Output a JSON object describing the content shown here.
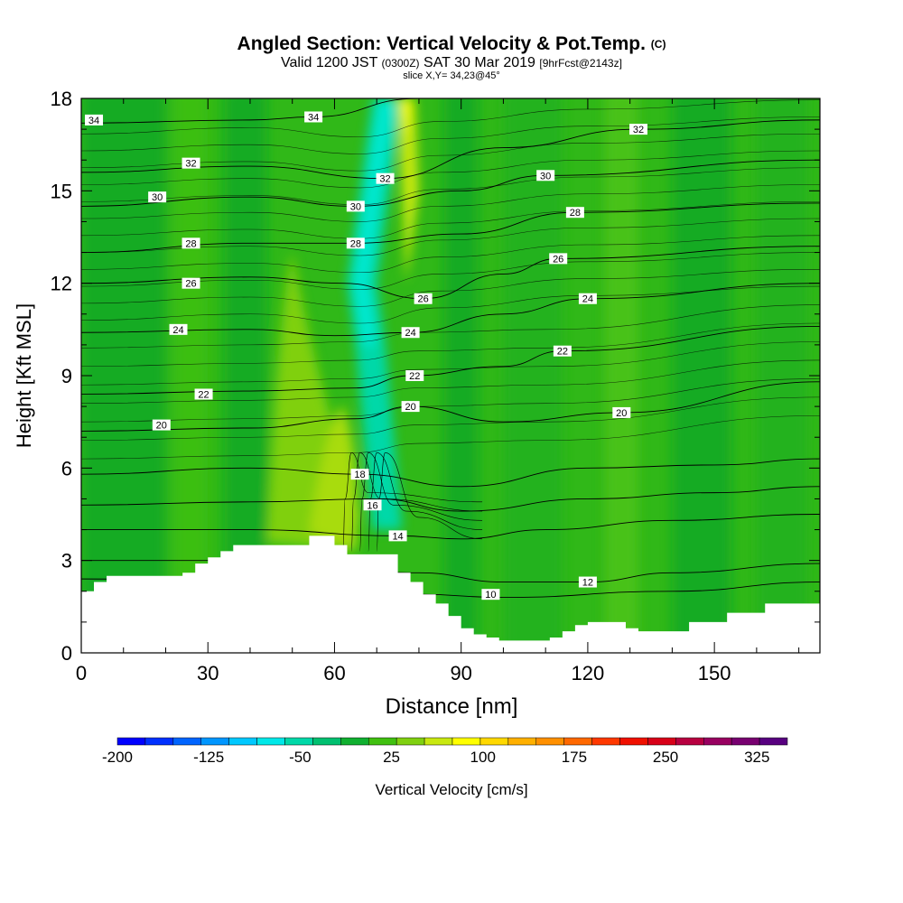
{
  "title": {
    "main": "Angled Section: Vertical Velocity & Pot.Temp.",
    "main_tag": "(C)",
    "valid_prefix": "Valid 1200 JST",
    "valid_utc": "(0300Z)",
    "valid_date": "SAT 30 Mar 2019",
    "forecast": "[9hrFcst@2143z]",
    "slice": "slice X,Y= 34,23@45°"
  },
  "chart_data": {
    "type": "heatmap",
    "xlabel": "Distance [nm]",
    "ylabel": "Height [Kft MSL]",
    "xlim": [
      0,
      175
    ],
    "ylim": [
      0,
      18
    ],
    "x_ticks": [
      0,
      30,
      60,
      90,
      120,
      150
    ],
    "y_ticks": [
      0,
      3,
      6,
      9,
      12,
      15,
      18
    ],
    "x_tick_labels": [
      "0",
      "30",
      "60",
      "90",
      "120",
      "150"
    ],
    "y_tick_labels": [
      "0",
      "3",
      "6",
      "9",
      "12",
      "15",
      "18"
    ],
    "colorbar": {
      "label": "Vertical Velocity [cm/s]",
      "min": -200,
      "max": 350,
      "step": 25,
      "tick_labels": [
        "-200",
        "-125",
        "-50",
        "25",
        "100",
        "175",
        "250",
        "325"
      ],
      "tick_values": [
        -200,
        -125,
        -50,
        25,
        100,
        175,
        250,
        325
      ],
      "colors": [
        "#0000ff",
        "#0030ff",
        "#0064ff",
        "#0096ff",
        "#00c8ff",
        "#00e8e8",
        "#00d8a8",
        "#00c070",
        "#10b030",
        "#40c010",
        "#80d010",
        "#c8e810",
        "#ffff00",
        "#ffd800",
        "#ffb000",
        "#ff9000",
        "#ff6800",
        "#ff3800",
        "#f01000",
        "#d80018",
        "#b80040",
        "#980060",
        "#780070",
        "#580080"
      ]
    },
    "terrain_profile": {
      "x": [
        0,
        3,
        6,
        9,
        12,
        15,
        24,
        27,
        30,
        33,
        36,
        39,
        42,
        45,
        48,
        51,
        54,
        57,
        60,
        63,
        66,
        69,
        72,
        75,
        78,
        81,
        84,
        87,
        90,
        93,
        96,
        99,
        102,
        105,
        108,
        111,
        114,
        117,
        120,
        123,
        126,
        129,
        132,
        135,
        138,
        141,
        144,
        147,
        150,
        153,
        156,
        159,
        162,
        165,
        168,
        171,
        175
      ],
      "y": [
        2.0,
        2.3,
        2.5,
        2.5,
        2.5,
        2.5,
        2.6,
        2.9,
        3.1,
        3.3,
        3.5,
        3.5,
        3.5,
        3.5,
        3.5,
        3.5,
        3.8,
        3.8,
        3.5,
        3.2,
        3.2,
        3.2,
        3.2,
        2.6,
        2.3,
        1.9,
        1.6,
        1.2,
        0.8,
        0.6,
        0.5,
        0.4,
        0.4,
        0.4,
        0.4,
        0.5,
        0.7,
        0.9,
        1.0,
        1.0,
        1.0,
        0.8,
        0.7,
        0.7,
        0.7,
        0.7,
        1.0,
        1.0,
        1.0,
        1.3,
        1.3,
        1.3,
        1.6,
        1.6,
        1.6,
        1.6,
        1.6
      ]
    },
    "updraft_core": {
      "x_center": [
        72,
        70,
        68,
        66,
        68,
        70,
        72
      ],
      "y": [
        4,
        7,
        10,
        12,
        14,
        16,
        18
      ]
    },
    "theta_contours": [
      {
        "label": "10",
        "y_at_x": [
          [
            0,
            2.4
          ],
          [
            40,
            2.3
          ],
          [
            80,
            1.9
          ],
          [
            100,
            1.8
          ],
          [
            140,
            2.0
          ],
          [
            175,
            2.3
          ]
        ],
        "label_pos": [
          97,
          1.9
        ]
      },
      {
        "label": "12",
        "y_at_x": [
          [
            0,
            3.0
          ],
          [
            40,
            3.0
          ],
          [
            80,
            2.6
          ],
          [
            100,
            2.3
          ],
          [
            120,
            2.3
          ],
          [
            140,
            2.6
          ],
          [
            175,
            2.9
          ]
        ],
        "label_pos": [
          120,
          2.3
        ]
      },
      {
        "label": "14",
        "y_at_x": [
          [
            0,
            4.0
          ],
          [
            40,
            4.0
          ],
          [
            75,
            3.8
          ],
          [
            90,
            3.7
          ],
          [
            110,
            4.0
          ],
          [
            140,
            4.3
          ],
          [
            175,
            4.5
          ]
        ],
        "label_pos": [
          75,
          3.8
        ]
      },
      {
        "label": "16",
        "y_at_x": [
          [
            0,
            4.8
          ],
          [
            40,
            4.9
          ],
          [
            70,
            5.0
          ],
          [
            90,
            4.6
          ],
          [
            120,
            5.0
          ],
          [
            150,
            5.2
          ],
          [
            175,
            5.4
          ]
        ],
        "label_pos": [
          69,
          4.8
        ]
      },
      {
        "label": "18",
        "y_at_x": [
          [
            0,
            5.8
          ],
          [
            40,
            6.0
          ],
          [
            66,
            5.8
          ],
          [
            90,
            5.4
          ],
          [
            120,
            6.0
          ],
          [
            150,
            6.1
          ],
          [
            175,
            6.3
          ]
        ],
        "label_pos": [
          66,
          5.8
        ]
      },
      {
        "label": "20",
        "y_at_x": [
          [
            0,
            7.2
          ],
          [
            40,
            7.3
          ],
          [
            65,
            7.6
          ],
          [
            78,
            8.0
          ],
          [
            100,
            7.5
          ],
          [
            128,
            7.8
          ],
          [
            175,
            8.8
          ]
        ],
        "label_pos": [
          128,
          7.8
        ]
      },
      {
        "label": "20",
        "y_at_x": [],
        "label_pos": [
          19,
          7.4
        ]
      },
      {
        "label": "20",
        "y_at_x": [],
        "label_pos": [
          78,
          8.0
        ]
      },
      {
        "label": "22",
        "y_at_x": [
          [
            0,
            8.4
          ],
          [
            40,
            8.5
          ],
          [
            65,
            8.6
          ],
          [
            78,
            9.0
          ],
          [
            100,
            9.3
          ],
          [
            114,
            9.8
          ],
          [
            175,
            10.6
          ]
        ],
        "label_pos": [
          29,
          8.4
        ]
      },
      {
        "label": "22",
        "y_at_x": [],
        "label_pos": [
          79,
          9.0
        ]
      },
      {
        "label": "22",
        "y_at_x": [],
        "label_pos": [
          114,
          9.8
        ]
      },
      {
        "label": "24",
        "y_at_x": [
          [
            0,
            10.4
          ],
          [
            40,
            10.5
          ],
          [
            60,
            10.3
          ],
          [
            78,
            10.4
          ],
          [
            100,
            11.0
          ],
          [
            120,
            11.5
          ],
          [
            175,
            12.0
          ]
        ],
        "label_pos": [
          23,
          10.5
        ]
      },
      {
        "label": "24",
        "y_at_x": [],
        "label_pos": [
          78,
          10.4
        ]
      },
      {
        "label": "24",
        "y_at_x": [],
        "label_pos": [
          120,
          11.5
        ]
      },
      {
        "label": "26",
        "y_at_x": [
          [
            0,
            12.0
          ],
          [
            40,
            12.2
          ],
          [
            62,
            12.0
          ],
          [
            81,
            11.5
          ],
          [
            100,
            12.3
          ],
          [
            113,
            12.8
          ],
          [
            175,
            13.2
          ]
        ],
        "label_pos": [
          26,
          12.0
        ]
      },
      {
        "label": "26",
        "y_at_x": [],
        "label_pos": [
          81,
          11.5
        ]
      },
      {
        "label": "26",
        "y_at_x": [],
        "label_pos": [
          113,
          12.8
        ]
      },
      {
        "label": "28",
        "y_at_x": [
          [
            0,
            13.0
          ],
          [
            40,
            13.3
          ],
          [
            65,
            13.3
          ],
          [
            90,
            13.6
          ],
          [
            117,
            14.3
          ],
          [
            175,
            14.6
          ]
        ],
        "label_pos": [
          26,
          13.3
        ]
      },
      {
        "label": "28",
        "y_at_x": [],
        "label_pos": [
          65,
          13.3
        ]
      },
      {
        "label": "28",
        "y_at_x": [],
        "label_pos": [
          117,
          14.3
        ]
      },
      {
        "label": "30",
        "y_at_x": [
          [
            0,
            14.5
          ],
          [
            40,
            14.8
          ],
          [
            65,
            14.5
          ],
          [
            90,
            15.0
          ],
          [
            110,
            15.5
          ],
          [
            175,
            16.0
          ]
        ],
        "label_pos": [
          18,
          14.8
        ]
      },
      {
        "label": "30",
        "y_at_x": [],
        "label_pos": [
          65,
          14.5
        ]
      },
      {
        "label": "30",
        "y_at_x": [],
        "label_pos": [
          110,
          15.5
        ]
      },
      {
        "label": "32",
        "y_at_x": [
          [
            0,
            15.6
          ],
          [
            40,
            15.8
          ],
          [
            72,
            15.4
          ],
          [
            100,
            16.4
          ],
          [
            132,
            17.0
          ],
          [
            175,
            17.3
          ]
        ],
        "label_pos": [
          26,
          15.9
        ]
      },
      {
        "label": "32",
        "y_at_x": [],
        "label_pos": [
          72,
          15.4
        ]
      },
      {
        "label": "32",
        "y_at_x": [],
        "label_pos": [
          132,
          17.0
        ]
      },
      {
        "label": "34",
        "y_at_x": [
          [
            0,
            17.2
          ],
          [
            40,
            17.3
          ],
          [
            55,
            17.4
          ],
          [
            80,
            18.0
          ]
        ],
        "label_pos": [
          3,
          17.3
        ]
      },
      {
        "label": "34",
        "y_at_x": [],
        "label_pos": [
          55,
          17.4
        ]
      }
    ]
  }
}
